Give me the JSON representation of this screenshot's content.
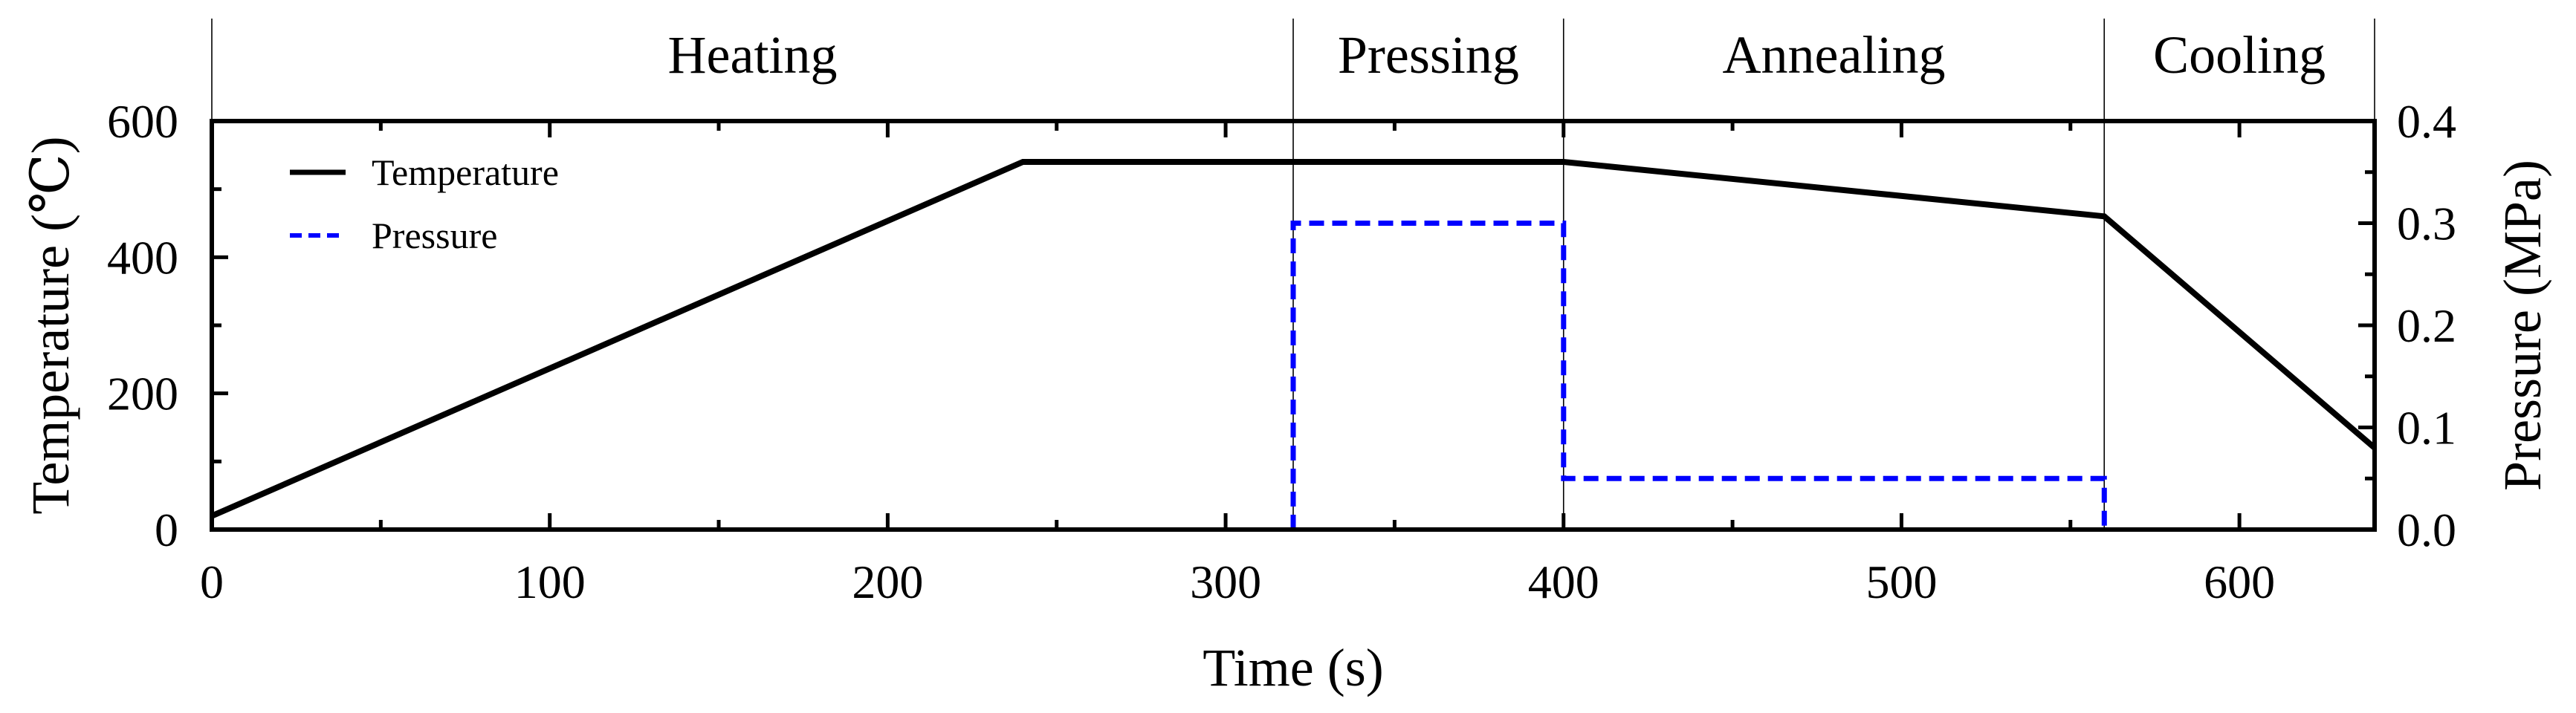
{
  "chart_data": {
    "type": "line",
    "x_axis": {
      "label": "Time (s)",
      "range": [
        0,
        640
      ],
      "ticks": [
        0,
        100,
        200,
        300,
        400,
        500,
        600
      ]
    },
    "y_axis_left": {
      "label": "Temperature (℃)",
      "range": [
        0,
        600
      ],
      "ticks": [
        0,
        200,
        400,
        600
      ]
    },
    "y_axis_right": {
      "label": "Pressure (MPa)",
      "range": [
        0.0,
        0.4
      ],
      "ticks": [
        "0.0",
        "0.1",
        "0.2",
        "0.3",
        "0.4"
      ]
    },
    "phases": [
      {
        "name": "Heating",
        "start": 0,
        "end": 320
      },
      {
        "name": "Pressing",
        "start": 320,
        "end": 400
      },
      {
        "name": "Annealing",
        "start": 400,
        "end": 560
      },
      {
        "name": "Cooling",
        "start": 560,
        "end": 640
      }
    ],
    "series": [
      {
        "name": "Temperature",
        "axis": "left",
        "color": "#000000",
        "style": "solid",
        "points": [
          [
            0,
            20
          ],
          [
            240,
            540
          ],
          [
            400,
            540
          ],
          [
            560,
            460
          ],
          [
            640,
            120
          ]
        ]
      },
      {
        "name": "Pressure",
        "axis": "right",
        "color": "#0000ff",
        "style": "dashed",
        "points": [
          [
            320,
            0.0
          ],
          [
            320,
            0.3
          ],
          [
            400,
            0.3
          ],
          [
            400,
            0.05
          ],
          [
            560,
            0.05
          ],
          [
            560,
            0.0
          ]
        ]
      }
    ],
    "legend_position": "top-left",
    "grid": false
  }
}
